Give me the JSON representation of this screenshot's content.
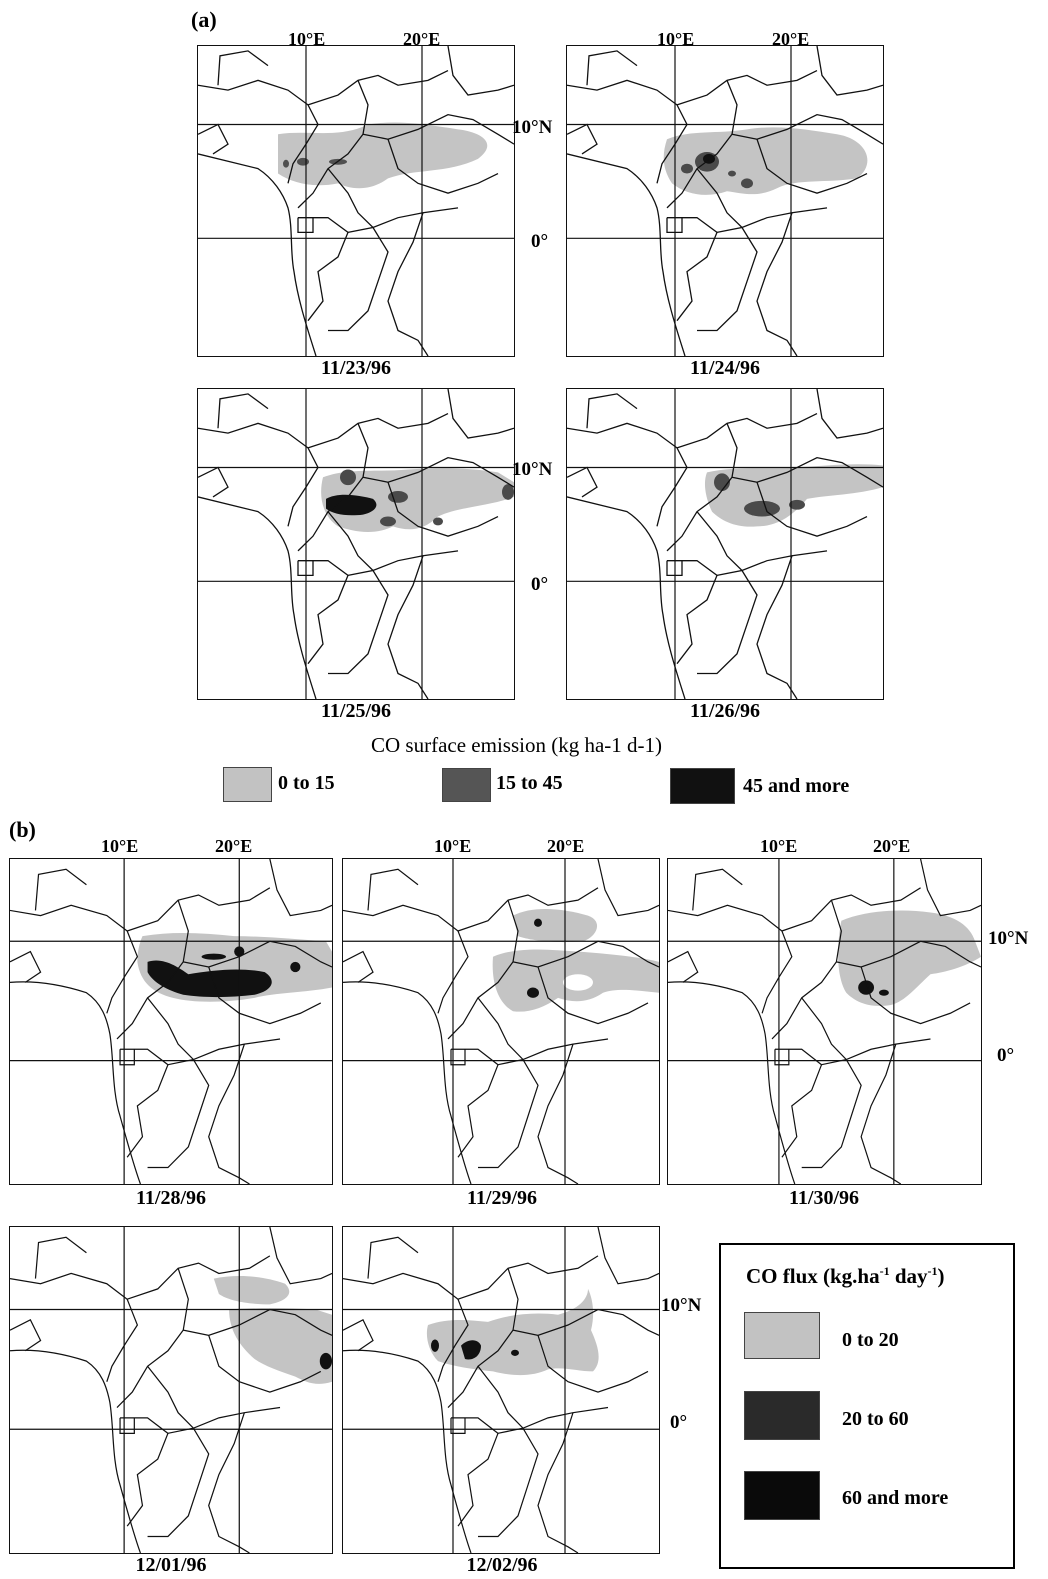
{
  "part_a": {
    "label": "(a)",
    "lon_labels": [
      "10°E",
      "20°E"
    ],
    "lat_labels": [
      "10°N",
      "0°"
    ],
    "panels": [
      {
        "date": "11/23/96",
        "intensity": "low"
      },
      {
        "date": "11/24/96",
        "intensity": "medium"
      },
      {
        "date": "11/25/96",
        "intensity": "high"
      },
      {
        "date": "11/26/96",
        "intensity": "medium"
      }
    ],
    "legend": {
      "title": "CO surface emission (kg ha-1 d-1)",
      "items": [
        {
          "label": "0 to 15",
          "color": "#c2c2c2"
        },
        {
          "label": "15 to 45",
          "color": "#555555"
        },
        {
          "label": "45 and more",
          "color": "#111111"
        }
      ]
    }
  },
  "part_b": {
    "label": "(b)",
    "lon_labels": [
      "10°E",
      "20°E"
    ],
    "lat_labels": [
      "10°N",
      "0°"
    ],
    "panels": [
      {
        "date": "11/28/96",
        "intensity": "high"
      },
      {
        "date": "11/29/96",
        "intensity": "low"
      },
      {
        "date": "11/30/96",
        "intensity": "low"
      },
      {
        "date": "12/01/96",
        "intensity": "low"
      },
      {
        "date": "12/02/96",
        "intensity": "medium"
      }
    ],
    "legend": {
      "title_main": "CO flux (kg.ha",
      "title_sup1": "-1",
      "title_mid": " day",
      "title_sup2": "-1",
      "title_end": ")",
      "items": [
        {
          "label": "0 to 20",
          "color": "#c2c2c2"
        },
        {
          "label": "20 to 60",
          "color": "#2a2a2a"
        },
        {
          "label": "60 and more",
          "color": "#0a0a0a"
        }
      ]
    }
  }
}
